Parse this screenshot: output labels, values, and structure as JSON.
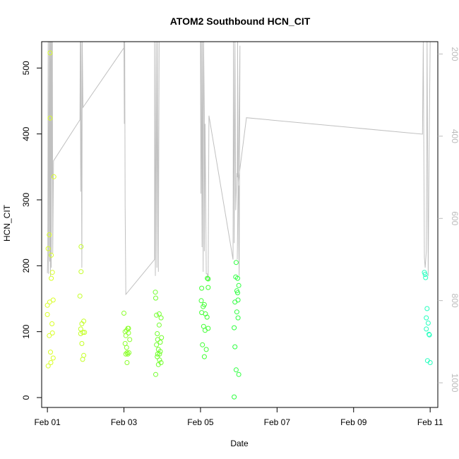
{
  "chart_data": {
    "type": "scatter",
    "title": "ATOM2 Southbound HCN_CIT",
    "xlabel": "Date",
    "ylabel": "HCN_CIT",
    "xlim": [
      -0.15,
      10.2
    ],
    "ylim": [
      -15,
      540
    ],
    "y2lim": [
      1060,
      170
    ],
    "x_ticks": [
      0,
      2,
      4,
      6,
      8,
      10
    ],
    "x_tick_labels": [
      "Feb 01",
      "Feb 03",
      "Feb 05",
      "Feb 07",
      "Feb 09",
      "Feb 11"
    ],
    "y_ticks": [
      0,
      100,
      200,
      300,
      400,
      500
    ],
    "y_tick_labels": [
      "0",
      "100",
      "200",
      "300",
      "400",
      "500"
    ],
    "y2_ticks": [
      200,
      400,
      600,
      800,
      1000
    ],
    "y2_tick_labels": [
      "200",
      "400",
      "600",
      "800",
      "1000"
    ],
    "grid": false,
    "colors": {
      "line": "#c0c0c0",
      "right_axis": "#bbbbbb",
      "frame": "#000000"
    },
    "points": [
      {
        "x": 0.0,
        "y": 126,
        "color": "#d9ff26"
      },
      {
        "x": 0.0,
        "y": 140,
        "color": "#d9ff26"
      },
      {
        "x": 0.02,
        "y": 48,
        "color": "#d9ff26"
      },
      {
        "x": 0.02,
        "y": 226,
        "color": "#d9ff26"
      },
      {
        "x": 0.05,
        "y": 94,
        "color": "#d9ff26"
      },
      {
        "x": 0.06,
        "y": 145,
        "color": "#d9ff26"
      },
      {
        "x": 0.05,
        "y": 247,
        "color": "#d9ff26"
      },
      {
        "x": 0.07,
        "y": 424,
        "color": "#d9ff26"
      },
      {
        "x": 0.07,
        "y": 523,
        "color": "#d9ff26"
      },
      {
        "x": 0.08,
        "y": 69,
        "color": "#d9ff26"
      },
      {
        "x": 0.09,
        "y": 53,
        "color": "#d9ff26"
      },
      {
        "x": 0.1,
        "y": 181,
        "color": "#d9ff26"
      },
      {
        "x": 0.1,
        "y": 216,
        "color": "#d9ff26"
      },
      {
        "x": 0.12,
        "y": 112,
        "color": "#d9ff26"
      },
      {
        "x": 0.13,
        "y": 190,
        "color": "#d9ff26"
      },
      {
        "x": 0.13,
        "y": 98,
        "color": "#d9ff26"
      },
      {
        "x": 0.15,
        "y": 148,
        "color": "#d9ff26"
      },
      {
        "x": 0.15,
        "y": 60,
        "color": "#d9ff26"
      },
      {
        "x": 0.17,
        "y": 335,
        "color": "#d9ff26"
      },
      {
        "x": 0.85,
        "y": 154,
        "color": "#c4ff26"
      },
      {
        "x": 0.87,
        "y": 97,
        "color": "#c4ff26"
      },
      {
        "x": 0.87,
        "y": 104,
        "color": "#c4ff26"
      },
      {
        "x": 0.88,
        "y": 191,
        "color": "#c4ff26"
      },
      {
        "x": 0.88,
        "y": 229,
        "color": "#c4ff26"
      },
      {
        "x": 0.9,
        "y": 112,
        "color": "#c4ff26"
      },
      {
        "x": 0.9,
        "y": 82,
        "color": "#c4ff26"
      },
      {
        "x": 0.92,
        "y": 58,
        "color": "#c4ff26"
      },
      {
        "x": 0.93,
        "y": 99,
        "color": "#c4ff26"
      },
      {
        "x": 0.95,
        "y": 116,
        "color": "#c4ff26"
      },
      {
        "x": 0.95,
        "y": 64,
        "color": "#c4ff26"
      },
      {
        "x": 0.97,
        "y": 99,
        "color": "#c4ff26"
      },
      {
        "x": 2.0,
        "y": 128,
        "color": "#8cff2e"
      },
      {
        "x": 2.03,
        "y": 100,
        "color": "#8cff2e"
      },
      {
        "x": 2.03,
        "y": 82,
        "color": "#8cff2e"
      },
      {
        "x": 2.05,
        "y": 66,
        "color": "#8cff2e"
      },
      {
        "x": 2.05,
        "y": 94,
        "color": "#8cff2e"
      },
      {
        "x": 2.07,
        "y": 102,
        "color": "#8cff2e"
      },
      {
        "x": 2.07,
        "y": 76,
        "color": "#8cff2e"
      },
      {
        "x": 2.08,
        "y": 68,
        "color": "#8cff2e"
      },
      {
        "x": 2.08,
        "y": 53,
        "color": "#8cff2e"
      },
      {
        "x": 2.1,
        "y": 105,
        "color": "#8cff2e"
      },
      {
        "x": 2.1,
        "y": 66,
        "color": "#8cff2e"
      },
      {
        "x": 2.12,
        "y": 98,
        "color": "#8cff2e"
      },
      {
        "x": 2.12,
        "y": 105,
        "color": "#8cff2e"
      },
      {
        "x": 2.13,
        "y": 68,
        "color": "#8cff2e"
      },
      {
        "x": 2.15,
        "y": 88,
        "color": "#8cff2e"
      },
      {
        "x": 2.82,
        "y": 160,
        "color": "#73ff2e"
      },
      {
        "x": 2.83,
        "y": 151,
        "color": "#73ff2e"
      },
      {
        "x": 2.83,
        "y": 35,
        "color": "#73ff2e"
      },
      {
        "x": 2.85,
        "y": 125,
        "color": "#73ff2e"
      },
      {
        "x": 2.85,
        "y": 80,
        "color": "#73ff2e"
      },
      {
        "x": 2.87,
        "y": 97,
        "color": "#73ff2e"
      },
      {
        "x": 2.87,
        "y": 62,
        "color": "#73ff2e"
      },
      {
        "x": 2.88,
        "y": 66,
        "color": "#73ff2e"
      },
      {
        "x": 2.88,
        "y": 88,
        "color": "#73ff2e"
      },
      {
        "x": 2.9,
        "y": 73,
        "color": "#73ff2e"
      },
      {
        "x": 2.9,
        "y": 50,
        "color": "#73ff2e"
      },
      {
        "x": 2.92,
        "y": 127,
        "color": "#73ff2e"
      },
      {
        "x": 2.92,
        "y": 110,
        "color": "#73ff2e"
      },
      {
        "x": 2.93,
        "y": 66,
        "color": "#73ff2e"
      },
      {
        "x": 2.93,
        "y": 57,
        "color": "#73ff2e"
      },
      {
        "x": 2.95,
        "y": 84,
        "color": "#73ff2e"
      },
      {
        "x": 2.95,
        "y": 70,
        "color": "#73ff2e"
      },
      {
        "x": 2.97,
        "y": 121,
        "color": "#73ff2e"
      },
      {
        "x": 2.97,
        "y": 53,
        "color": "#73ff2e"
      },
      {
        "x": 2.98,
        "y": 91,
        "color": "#73ff2e"
      },
      {
        "x": 4.02,
        "y": 147,
        "color": "#40ff33"
      },
      {
        "x": 4.03,
        "y": 129,
        "color": "#40ff33"
      },
      {
        "x": 4.03,
        "y": 166,
        "color": "#40ff33"
      },
      {
        "x": 4.05,
        "y": 80,
        "color": "#40ff33"
      },
      {
        "x": 4.07,
        "y": 138,
        "color": "#40ff33"
      },
      {
        "x": 4.08,
        "y": 108,
        "color": "#40ff33"
      },
      {
        "x": 4.1,
        "y": 62,
        "color": "#40ff33"
      },
      {
        "x": 4.1,
        "y": 141,
        "color": "#40ff33"
      },
      {
        "x": 4.12,
        "y": 102,
        "color": "#40ff33"
      },
      {
        "x": 4.13,
        "y": 127,
        "color": "#40ff33"
      },
      {
        "x": 4.15,
        "y": 73,
        "color": "#40ff33"
      },
      {
        "x": 4.17,
        "y": 122,
        "color": "#40ff33"
      },
      {
        "x": 4.18,
        "y": 181,
        "color": "#40ff33"
      },
      {
        "x": 4.2,
        "y": 167,
        "color": "#40ff33"
      },
      {
        "x": 4.2,
        "y": 180,
        "color": "#40ff33"
      },
      {
        "x": 4.2,
        "y": 105,
        "color": "#40ff33"
      },
      {
        "x": 4.88,
        "y": 106,
        "color": "#2eff40"
      },
      {
        "x": 4.88,
        "y": 1,
        "color": "#2eff40"
      },
      {
        "x": 4.9,
        "y": 145,
        "color": "#2eff40"
      },
      {
        "x": 4.9,
        "y": 77,
        "color": "#2eff40"
      },
      {
        "x": 4.92,
        "y": 183,
        "color": "#2eff40"
      },
      {
        "x": 4.93,
        "y": 205,
        "color": "#2eff40"
      },
      {
        "x": 4.93,
        "y": 42,
        "color": "#2eff40"
      },
      {
        "x": 4.95,
        "y": 162,
        "color": "#2eff40"
      },
      {
        "x": 4.95,
        "y": 130,
        "color": "#2eff40"
      },
      {
        "x": 4.97,
        "y": 181,
        "color": "#2eff40"
      },
      {
        "x": 4.97,
        "y": 159,
        "color": "#2eff40"
      },
      {
        "x": 4.98,
        "y": 148,
        "color": "#2eff40"
      },
      {
        "x": 4.98,
        "y": 121,
        "color": "#2eff40"
      },
      {
        "x": 5.0,
        "y": 35,
        "color": "#2eff40"
      },
      {
        "x": 5.0,
        "y": 170,
        "color": "#2eff40"
      },
      {
        "x": 9.85,
        "y": 190,
        "color": "#26ffbf"
      },
      {
        "x": 9.87,
        "y": 187,
        "color": "#26ffbf"
      },
      {
        "x": 9.88,
        "y": 182,
        "color": "#26ffbf"
      },
      {
        "x": 9.9,
        "y": 121,
        "color": "#26ffbf"
      },
      {
        "x": 9.9,
        "y": 104,
        "color": "#26ffbf"
      },
      {
        "x": 9.92,
        "y": 135,
        "color": "#26ffbf"
      },
      {
        "x": 9.93,
        "y": 56,
        "color": "#26ffbf"
      },
      {
        "x": 9.95,
        "y": 113,
        "color": "#26ffbf"
      },
      {
        "x": 9.97,
        "y": 96,
        "color": "#26ffbf"
      },
      {
        "x": 9.98,
        "y": 95,
        "color": "#26ffbf"
      },
      {
        "x": 10.0,
        "y": 53,
        "color": "#26ffbf"
      }
    ],
    "series": [
      {
        "axis": "right",
        "points": [
          [
            0.0,
            733
          ],
          [
            0.01,
            690
          ],
          [
            0.02,
            170
          ],
          [
            0.03,
            735
          ],
          [
            0.05,
            170
          ],
          [
            0.06,
            705
          ],
          [
            0.07,
            170
          ],
          [
            0.08,
            740
          ],
          [
            0.09,
            170
          ],
          [
            0.1,
            720
          ],
          [
            0.11,
            170
          ],
          [
            0.12,
            500
          ],
          [
            0.13,
            170
          ],
          [
            0.14,
            685
          ],
          [
            0.16,
            460
          ],
          [
            0.85,
            360
          ],
          [
            0.86,
            170
          ],
          [
            0.87,
            535
          ],
          [
            0.88,
            170
          ],
          [
            0.9,
            720
          ],
          [
            0.91,
            170
          ],
          [
            0.93,
            330
          ],
          [
            2.0,
            185
          ],
          [
            2.0,
            170
          ],
          [
            2.01,
            370
          ],
          [
            2.02,
            170
          ],
          [
            2.03,
            570
          ],
          [
            2.05,
            785
          ],
          [
            2.8,
            700
          ],
          [
            2.8,
            170
          ],
          [
            2.82,
            740
          ],
          [
            2.84,
            170
          ],
          [
            2.86,
            720
          ],
          [
            2.88,
            170
          ],
          [
            2.9,
            730
          ],
          [
            2.92,
            170
          ],
          [
            4.0,
            170
          ],
          [
            4.01,
            540
          ],
          [
            4.02,
            170
          ],
          [
            4.04,
            670
          ],
          [
            4.05,
            170
          ],
          [
            4.07,
            730
          ],
          [
            4.08,
            170
          ],
          [
            4.1,
            350
          ],
          [
            4.1,
            680
          ],
          [
            4.12,
            370
          ],
          [
            4.15,
            735
          ],
          [
            4.18,
            735
          ],
          [
            4.2,
            750
          ],
          [
            4.22,
            350
          ],
          [
            4.85,
            700
          ],
          [
            4.86,
            170
          ],
          [
            4.88,
            660
          ],
          [
            4.9,
            170
          ],
          [
            4.92,
            580
          ],
          [
            4.95,
            490
          ],
          [
            4.96,
            500
          ],
          [
            4.97,
            170
          ],
          [
            4.98,
            550
          ],
          [
            5.0,
            520
          ],
          [
            5.0,
            660
          ],
          [
            5.01,
            740
          ],
          [
            5.03,
            180
          ],
          [
            4.96,
            700
          ],
          [
            4.98,
            515
          ],
          [
            5.2,
            355
          ],
          [
            9.8,
            395
          ],
          [
            9.82,
            170
          ],
          [
            9.85,
            695
          ],
          [
            9.87,
            720
          ],
          [
            9.9,
            680
          ],
          [
            9.92,
            170
          ],
          [
            9.95,
            740
          ],
          [
            9.97,
            470
          ],
          [
            10.0,
            170
          ]
        ]
      }
    ]
  }
}
